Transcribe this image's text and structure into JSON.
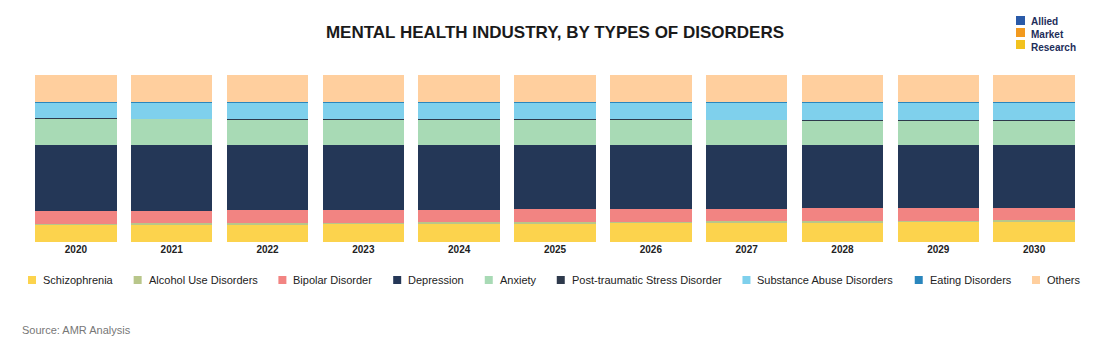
{
  "chart_data": {
    "type": "bar",
    "title": "MENTAL HEALTH INDUSTRY, BY TYPES OF DISORDERS",
    "source": "Source: AMR Analysis",
    "logo": "Allied Market Research",
    "categories": [
      "2020",
      "2021",
      "2022",
      "2023",
      "2024",
      "2025",
      "2026",
      "2027",
      "2028",
      "2029",
      "2030"
    ],
    "stacked": true,
    "grid": false,
    "legend": "bottom",
    "tick_labels": "x",
    "ylim": [
      0,
      100
    ],
    "series": [
      {
        "name": "Schizophrenia",
        "color": "#fcd34d",
        "values": [
          10.0,
          10.2,
          10.4,
          10.6,
          10.8,
          11.0,
          11.2,
          11.4,
          11.6,
          11.8,
          12.0
        ]
      },
      {
        "name": "Alcohol Use Disorders",
        "color": "#b8c68a",
        "values": [
          1,
          1,
          1,
          1,
          1,
          1,
          1,
          1,
          1,
          1,
          1
        ]
      },
      {
        "name": "Bipolar Disorder",
        "color": "#f28482",
        "values": [
          7.5,
          7.5,
          7.5,
          7.5,
          7.5,
          7.5,
          7.5,
          7.5,
          7.5,
          7.5,
          7.5
        ]
      },
      {
        "name": "Depression",
        "color": "#243757",
        "values": [
          39.5,
          39.3,
          39.1,
          38.9,
          38.7,
          38.5,
          38.3,
          38.1,
          37.9,
          37.7,
          37.5
        ]
      },
      {
        "name": "Anxiety",
        "color": "#a8dab5",
        "values": [
          15.5,
          15.4,
          15.3,
          15.2,
          15.1,
          15.0,
          14.9,
          14.8,
          14.7,
          14.6,
          14.5
        ]
      },
      {
        "name": "Post-traumatic Stress Disorder",
        "color": "#2e3a4c",
        "values": [
          0.5,
          0.5,
          0.5,
          0.5,
          0.5,
          0.5,
          0.5,
          0.5,
          0.5,
          0.5,
          0.5
        ]
      },
      {
        "name": "Substance Abuse Disorders",
        "color": "#7fd0ec",
        "values": [
          9.5,
          9.6,
          9.7,
          9.8,
          9.9,
          10.0,
          10.1,
          10.2,
          10.3,
          10.4,
          10.5
        ]
      },
      {
        "name": "Eating Disorders",
        "color": "#2a86bd",
        "values": [
          0.5,
          0.5,
          0.5,
          0.5,
          0.5,
          0.5,
          0.5,
          0.5,
          0.5,
          0.5,
          0.5
        ]
      },
      {
        "name": "Others",
        "color": "#ffcf9e",
        "values": [
          16,
          16,
          16,
          16,
          16,
          16,
          16,
          16,
          16,
          16,
          16
        ]
      }
    ]
  }
}
